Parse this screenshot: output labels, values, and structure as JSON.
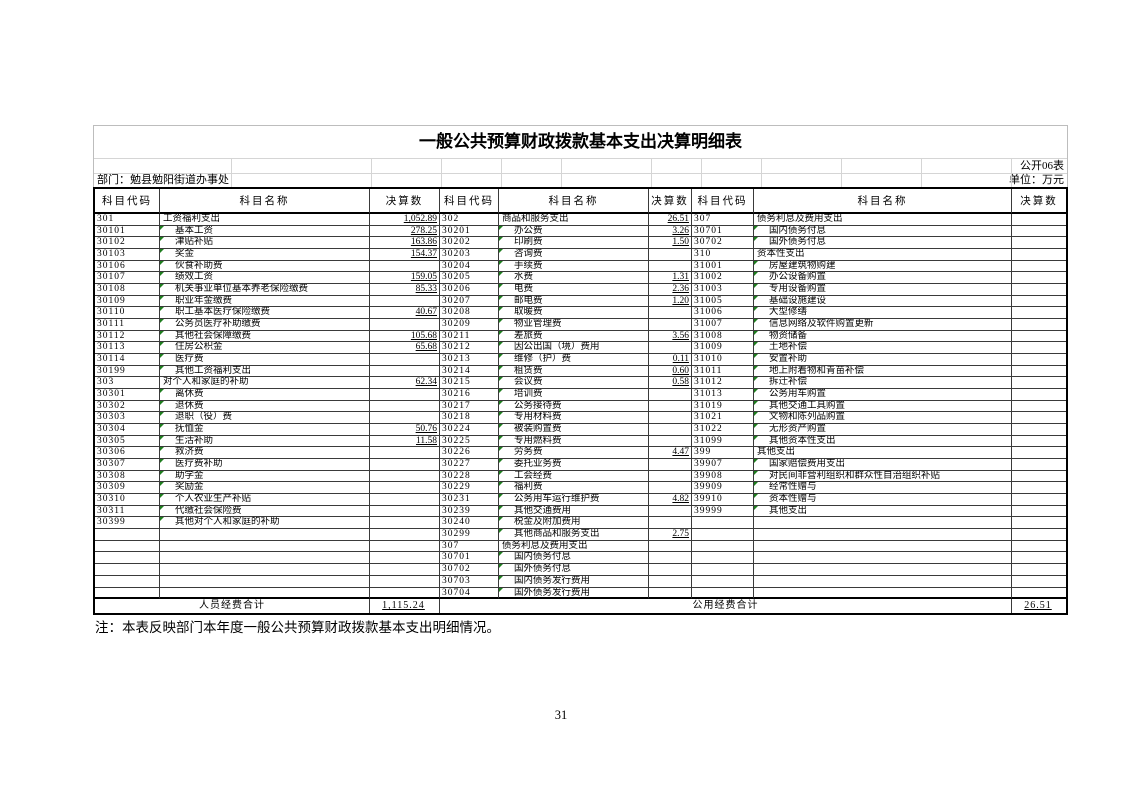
{
  "page": {
    "number": "31",
    "note": "注：本表反映部门本年度一般公共预算财政拨款基本支出明细情况。"
  },
  "sheet": {
    "title": "一般公共预算财政拨款基本支出决算明细表",
    "table_tag": "公开06表",
    "department_label": "部门：勉县勉阳街道办事处",
    "unit_label": "单位：万元",
    "headers": [
      "科目代码",
      "科目名称",
      "决算数",
      "科目代码",
      "科目名称",
      "决算数",
      "科目代码",
      "科目名称",
      "决算数"
    ],
    "marker_color": "#1e7e1e",
    "totals": {
      "left_label": "人员经费合计",
      "left_value": "1,115.24",
      "right_label": "公用经费合计",
      "right_value": "26.51"
    },
    "groups": [
      {
        "rows": [
          {
            "code": "301",
            "name": "工资福利支出",
            "value": "1,052.89",
            "indent": false
          },
          {
            "code": "30101",
            "name": "基本工资",
            "value": "278.25",
            "indent": true
          },
          {
            "code": "30102",
            "name": "津贴补贴",
            "value": "163.86",
            "indent": true
          },
          {
            "code": "30103",
            "name": "奖金",
            "value": "154.37",
            "indent": true
          },
          {
            "code": "30106",
            "name": "伙食补助费",
            "value": "",
            "indent": true
          },
          {
            "code": "30107",
            "name": "绩效工资",
            "value": "159.05",
            "indent": true
          },
          {
            "code": "30108",
            "name": "机关事业单位基本养老保险缴费",
            "value": "85.33",
            "indent": true
          },
          {
            "code": "30109",
            "name": "职业年金缴费",
            "value": "",
            "indent": true
          },
          {
            "code": "30110",
            "name": "职工基本医疗保险缴费",
            "value": "40.67",
            "indent": true
          },
          {
            "code": "30111",
            "name": "公务员医疗补助缴费",
            "value": "",
            "indent": true
          },
          {
            "code": "30112",
            "name": "其他社会保障缴费",
            "value": "105.68",
            "indent": true
          },
          {
            "code": "30113",
            "name": "住房公积金",
            "value": "65.68",
            "indent": true
          },
          {
            "code": "30114",
            "name": "医疗费",
            "value": "",
            "indent": true
          },
          {
            "code": "30199",
            "name": "其他工资福利支出",
            "value": "",
            "indent": true
          },
          {
            "code": "303",
            "name": "对个人和家庭的补助",
            "value": "62.34",
            "indent": false
          },
          {
            "code": "30301",
            "name": "离休费",
            "value": "",
            "indent": true
          },
          {
            "code": "30302",
            "name": "退休费",
            "value": "",
            "indent": true
          },
          {
            "code": "30303",
            "name": "退职（役）费",
            "value": "",
            "indent": true
          },
          {
            "code": "30304",
            "name": "抚恤金",
            "value": "50.76",
            "indent": true
          },
          {
            "code": "30305",
            "name": "生活补助",
            "value": "11.58",
            "indent": true
          },
          {
            "code": "30306",
            "name": "救济费",
            "value": "",
            "indent": true
          },
          {
            "code": "30307",
            "name": "医疗费补助",
            "value": "",
            "indent": true
          },
          {
            "code": "30308",
            "name": "助学金",
            "value": "",
            "indent": true
          },
          {
            "code": "30309",
            "name": "奖励金",
            "value": "",
            "indent": true
          },
          {
            "code": "30310",
            "name": "个人农业生产补贴",
            "value": "",
            "indent": true
          },
          {
            "code": "30311",
            "name": "代缴社会保险费",
            "value": "",
            "indent": true
          },
          {
            "code": "30399",
            "name": "其他对个人和家庭的补助",
            "value": "",
            "indent": true
          },
          {
            "code": "",
            "name": "",
            "value": "",
            "indent": false
          },
          {
            "code": "",
            "name": "",
            "value": "",
            "indent": false
          },
          {
            "code": "",
            "name": "",
            "value": "",
            "indent": false
          },
          {
            "code": "",
            "name": "",
            "value": "",
            "indent": false
          },
          {
            "code": "",
            "name": "",
            "value": "",
            "indent": false
          },
          {
            "code": "",
            "name": "",
            "value": "",
            "indent": false
          }
        ]
      },
      {
        "rows": [
          {
            "code": "302",
            "name": "商品和服务支出",
            "value": "26.51",
            "indent": false
          },
          {
            "code": "30201",
            "name": "办公费",
            "value": "3.26",
            "indent": true
          },
          {
            "code": "30202",
            "name": "印刷费",
            "value": "1.50",
            "indent": true
          },
          {
            "code": "30203",
            "name": "咨询费",
            "value": "",
            "indent": true
          },
          {
            "code": "30204",
            "name": "手续费",
            "value": "",
            "indent": true
          },
          {
            "code": "30205",
            "name": "水费",
            "value": "1.31",
            "indent": true
          },
          {
            "code": "30206",
            "name": "电费",
            "value": "2.36",
            "indent": true
          },
          {
            "code": "30207",
            "name": "邮电费",
            "value": "1.20",
            "indent": true
          },
          {
            "code": "30208",
            "name": "取暖费",
            "value": "",
            "indent": true
          },
          {
            "code": "30209",
            "name": "物业管理费",
            "value": "",
            "indent": true
          },
          {
            "code": "30211",
            "name": "差旅费",
            "value": "3.56",
            "indent": true
          },
          {
            "code": "30212",
            "name": "因公出国（境）费用",
            "value": "",
            "indent": true
          },
          {
            "code": "30213",
            "name": "维修（护）费",
            "value": "0.11",
            "indent": true
          },
          {
            "code": "30214",
            "name": "租赁费",
            "value": "0.60",
            "indent": true
          },
          {
            "code": "30215",
            "name": "会议费",
            "value": "0.58",
            "indent": true
          },
          {
            "code": "30216",
            "name": "培训费",
            "value": "",
            "indent": true
          },
          {
            "code": "30217",
            "name": "公务接待费",
            "value": "",
            "indent": true
          },
          {
            "code": "30218",
            "name": "专用材料费",
            "value": "",
            "indent": true
          },
          {
            "code": "30224",
            "name": "被装购置费",
            "value": "",
            "indent": true
          },
          {
            "code": "30225",
            "name": "专用燃料费",
            "value": "",
            "indent": true
          },
          {
            "code": "30226",
            "name": "劳务费",
            "value": "4.47",
            "indent": true
          },
          {
            "code": "30227",
            "name": "委托业务费",
            "value": "",
            "indent": true
          },
          {
            "code": "30228",
            "name": "工会经费",
            "value": "",
            "indent": true
          },
          {
            "code": "30229",
            "name": "福利费",
            "value": "",
            "indent": true
          },
          {
            "code": "30231",
            "name": "公务用车运行维护费",
            "value": "4.82",
            "indent": true
          },
          {
            "code": "30239",
            "name": "其他交通费用",
            "value": "",
            "indent": true
          },
          {
            "code": "30240",
            "name": "税金及附加费用",
            "value": "",
            "indent": true
          },
          {
            "code": "30299",
            "name": "其他商品和服务支出",
            "value": "2.75",
            "indent": true
          },
          {
            "code": "307",
            "name": "债务利息及费用支出",
            "value": "",
            "indent": false
          },
          {
            "code": "30701",
            "name": "国内债务付息",
            "value": "",
            "indent": true
          },
          {
            "code": "30702",
            "name": "国外债务付息",
            "value": "",
            "indent": true
          },
          {
            "code": "30703",
            "name": "国内债务发行费用",
            "value": "",
            "indent": true
          },
          {
            "code": "30704",
            "name": "国外债务发行费用",
            "value": "",
            "indent": true
          }
        ]
      },
      {
        "rows": [
          {
            "code": "307",
            "name": "债务利息及费用支出",
            "value": "",
            "indent": false
          },
          {
            "code": "30701",
            "name": "国内债务付息",
            "value": "",
            "indent": true
          },
          {
            "code": "30702",
            "name": "国外债务付息",
            "value": "",
            "indent": true
          },
          {
            "code": "310",
            "name": "资本性支出",
            "value": "",
            "indent": false
          },
          {
            "code": "31001",
            "name": "房屋建筑物购建",
            "value": "",
            "indent": true
          },
          {
            "code": "31002",
            "name": "办公设备购置",
            "value": "",
            "indent": true
          },
          {
            "code": "31003",
            "name": "专用设备购置",
            "value": "",
            "indent": true
          },
          {
            "code": "31005",
            "name": "基础设施建设",
            "value": "",
            "indent": true
          },
          {
            "code": "31006",
            "name": "大型修缮",
            "value": "",
            "indent": true
          },
          {
            "code": "31007",
            "name": "信息网络及软件购置更新",
            "value": "",
            "indent": true
          },
          {
            "code": "31008",
            "name": "物资储备",
            "value": "",
            "indent": true
          },
          {
            "code": "31009",
            "name": "土地补偿",
            "value": "",
            "indent": true
          },
          {
            "code": "31010",
            "name": "安置补助",
            "value": "",
            "indent": true
          },
          {
            "code": "31011",
            "name": "地上附着物和青苗补偿",
            "value": "",
            "indent": true
          },
          {
            "code": "31012",
            "name": "拆迁补偿",
            "value": "",
            "indent": true
          },
          {
            "code": "31013",
            "name": "公务用车购置",
            "value": "",
            "indent": true
          },
          {
            "code": "31019",
            "name": "其他交通工具购置",
            "value": "",
            "indent": true
          },
          {
            "code": "31021",
            "name": "文物和陈列品购置",
            "value": "",
            "indent": true
          },
          {
            "code": "31022",
            "name": "无形资产购置",
            "value": "",
            "indent": true
          },
          {
            "code": "31099",
            "name": "其他资本性支出",
            "value": "",
            "indent": true
          },
          {
            "code": "399",
            "name": "其他支出",
            "value": "",
            "indent": false
          },
          {
            "code": "39907",
            "name": "国家赔偿费用支出",
            "value": "",
            "indent": true
          },
          {
            "code": "39908",
            "name": "对民间非营利组织和群众性自治组织补贴",
            "value": "",
            "indent": true
          },
          {
            "code": "39909",
            "name": "经常性赠与",
            "value": "",
            "indent": true
          },
          {
            "code": "39910",
            "name": "资本性赠与",
            "value": "",
            "indent": true
          },
          {
            "code": "39999",
            "name": "其他支出",
            "value": "",
            "indent": true
          },
          {
            "code": "",
            "name": "",
            "value": "",
            "indent": false
          },
          {
            "code": "",
            "name": "",
            "value": "",
            "indent": false
          },
          {
            "code": "",
            "name": "",
            "value": "",
            "indent": false
          },
          {
            "code": "",
            "name": "",
            "value": "",
            "indent": false
          },
          {
            "code": "",
            "name": "",
            "value": "",
            "indent": false
          },
          {
            "code": "",
            "name": "",
            "value": "",
            "indent": false
          },
          {
            "code": "",
            "name": "",
            "value": "",
            "indent": false
          }
        ]
      }
    ]
  }
}
